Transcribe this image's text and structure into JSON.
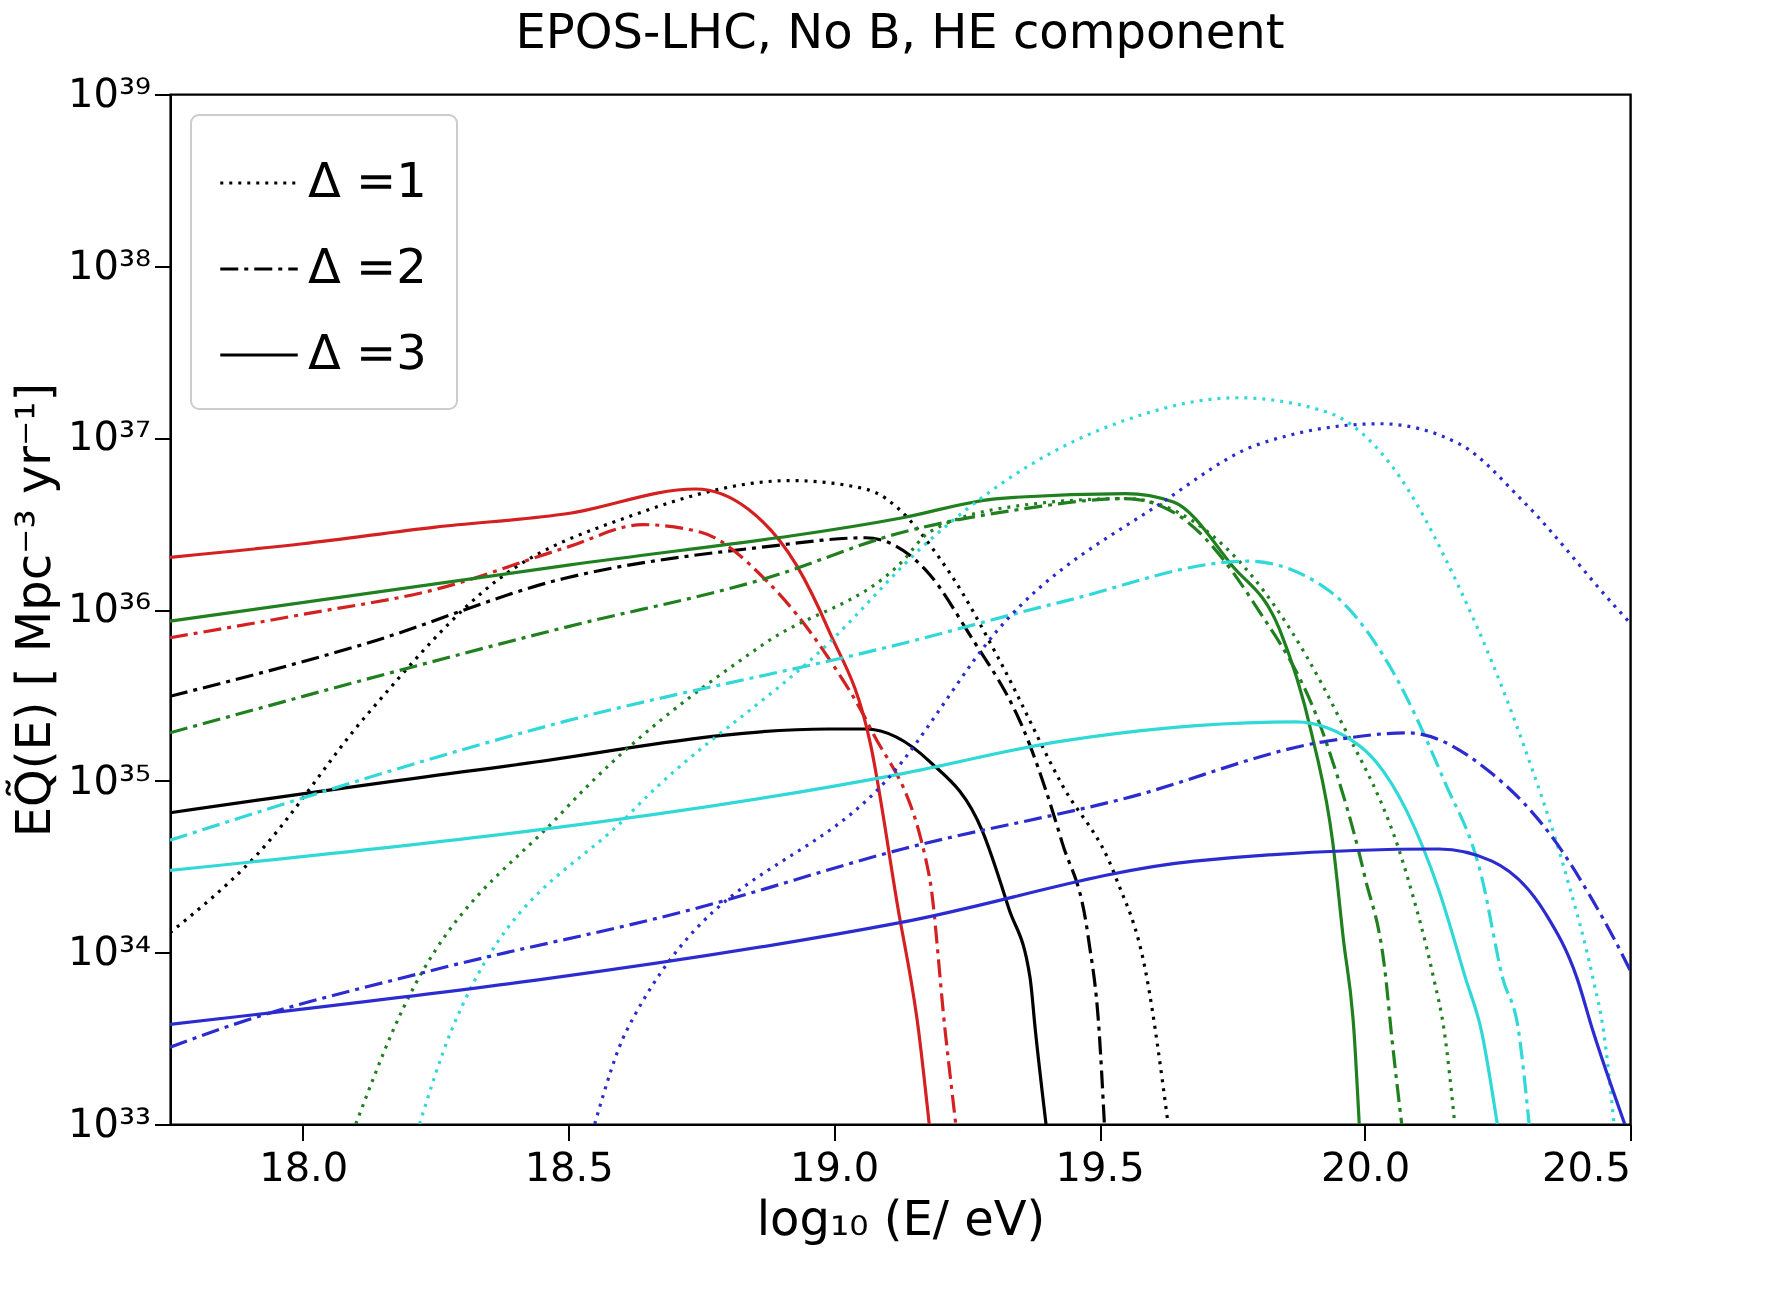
{
  "chart_data": {
    "type": "line",
    "title": "EPOS-LHC, No B, HE component",
    "xlabel": "log₁₀ (E/ eV)",
    "ylabel": "EQ̃(E) [ Mpc⁻³ yr⁻¹]",
    "log": "y",
    "legend": "top left",
    "xlim": [
      17.75,
      20.5
    ],
    "xticks": [
      {
        "value": 18,
        "label": "18.0"
      },
      18.5,
      {
        "value": 19,
        "label": "19.0"
      },
      19.5,
      {
        "value": 20,
        "label": "20.0"
      },
      20.5
    ],
    "ylim": [
      1e+33,
      1e+39
    ],
    "yticks": [
      {
        "value": 1e+33,
        "label": "10³³"
      },
      {
        "value": 1e+34,
        "label": "10³⁴"
      },
      {
        "value": 1e+35,
        "label": "10³⁵"
      },
      {
        "value": 1e+36,
        "label": "10³⁶"
      },
      {
        "value": 1e+37,
        "label": "10³⁷"
      },
      {
        "value": 1e+38,
        "label": "10³⁸"
      },
      {
        "value": 1e+39,
        "label": "10³⁹"
      }
    ],
    "series": [
      {
        "name": "Δ =1",
        "color": "#000000",
        "line_style": "dotted",
        "x": [
          17.75,
          17.91,
          18.12,
          18.37,
          18.62,
          18.92,
          19.06,
          19.22,
          19.31,
          19.43,
          19.53,
          19.59,
          19.63
        ],
        "values": [
          1.3e+34,
          3.6e+34,
          2.4e+35,
          1.5e+36,
          3.5e+36,
          5.6e+36,
          5e+36,
          1.6e+36,
          5.2e+35,
          9.5e+34,
          2.8e+34,
          7.1e+33,
          1e+33
        ]
      },
      {
        "name": "Δ =2",
        "color": "#000000",
        "line_style": "dashdot",
        "x": [
          17.75,
          18.12,
          18.49,
          18.87,
          19.06,
          19.18,
          19.25,
          19.37,
          19.43,
          19.48,
          19.5,
          19.51
        ],
        "values": [
          3.1e+35,
          6.3e+35,
          1.5e+36,
          2.3e+36,
          2.6e+36,
          1.6e+36,
          7.6e+35,
          1.6e+35,
          4.4e+34,
          1.2e+34,
          3.5e+33,
          1e+33
        ]
      },
      {
        "name": "Δ =3",
        "color": "#000000",
        "line_style": "solid",
        "x": [
          17.75,
          18.37,
          18.99,
          19.06,
          19.18,
          19.28,
          19.33,
          19.37,
          19.38,
          19.4
        ],
        "values": [
          6.5e+34,
          1.2e+35,
          2e+35,
          2e+35,
          1.3e+35,
          5.1e+34,
          1.8e+34,
          7.1e+33,
          3.5e+33,
          1e+33
        ]
      },
      {
        "color": "#d42020",
        "line_style": "dashdot",
        "x": [
          17.75,
          18.0,
          18.25,
          18.5,
          18.64,
          18.75,
          18.87,
          18.99,
          19.07,
          19.18,
          19.21,
          19.23
        ],
        "values": [
          6.8e+35,
          9.3e+35,
          1.3e+36,
          2.3e+36,
          3.1e+36,
          2.8e+36,
          1.5e+36,
          5.2e+35,
          2e+35,
          2.8e+34,
          3.5e+33,
          1e+33
        ]
      },
      {
        "color": "#d42020",
        "line_style": "solid",
        "x": [
          17.75,
          18.0,
          18.25,
          18.5,
          18.74,
          18.84,
          18.93,
          18.99,
          19.07,
          19.12,
          19.16,
          19.18
        ],
        "values": [
          2e+36,
          2.4e+36,
          3e+36,
          3.6e+36,
          5e+36,
          3.8e+36,
          1.8e+36,
          7.6e+35,
          1.6e+35,
          1.9e+34,
          3.5e+33,
          1e+33
        ]
      },
      {
        "color": "#208020",
        "line_style": "dotted",
        "x": [
          18.1,
          18.17,
          18.49,
          18.87,
          19.13,
          19.18,
          19.35,
          19.55,
          19.68,
          19.83,
          19.95,
          20.08,
          20.13,
          20.15,
          20.17
        ],
        "values": [
          1e+33,
          3.5e+33,
          6.6e+34,
          6.3e+35,
          1.9e+36,
          2.8e+36,
          4e+36,
          4.4e+36,
          3.2e+36,
          1.05e+36,
          2.4e+35,
          2.8e+34,
          7.1e+33,
          3.5e+33,
          1e+33
        ]
      },
      {
        "color": "#208020",
        "line_style": "dashdot",
        "x": [
          17.75,
          18.5,
          18.87,
          19.13,
          19.35,
          19.55,
          19.65,
          19.79,
          19.93,
          20.0,
          20.04,
          20.05,
          20.07
        ],
        "values": [
          1.9e+35,
          7.9e+35,
          1.5e+36,
          2.8e+36,
          3.8e+36,
          4.4e+36,
          3.5e+36,
          1.1e+36,
          1.6e+35,
          2.8e+34,
          7.1e+33,
          3.5e+33,
          1e+33
        ]
      },
      {
        "color": "#208020",
        "line_style": "solid",
        "x": [
          17.75,
          18.5,
          19.13,
          19.31,
          19.55,
          19.64,
          19.75,
          19.84,
          19.9,
          19.94,
          19.96,
          19.98,
          19.99
        ],
        "values": [
          8.5e+35,
          1.8e+36,
          3.4e+36,
          4.4e+36,
          4.7e+36,
          4.2e+36,
          1.8e+36,
          7.6e+35,
          1.9e+35,
          4.4e+34,
          1.2e+34,
          3.5e+33,
          1e+33
        ]
      },
      {
        "color": "#30d8d8",
        "line_style": "dotted",
        "x": [
          18.22,
          18.28,
          18.62,
          18.99,
          19.18,
          19.37,
          19.55,
          19.76,
          19.93,
          20.05,
          20.18,
          20.3,
          20.38,
          20.43,
          20.45,
          20.47
        ],
        "values": [
          1e+33,
          3.5e+33,
          6.6e+34,
          6.3e+35,
          2.5e+36,
          6.9e+36,
          1.26e+37,
          1.7e+37,
          1.4e+37,
          6.9e+36,
          1.3e+36,
          1.6e+35,
          2.8e+34,
          7.1e+33,
          3.5e+33,
          1e+33
        ]
      },
      {
        "color": "#30d8d8",
        "line_style": "dashdot",
        "x": [
          17.75,
          18.49,
          19.13,
          19.43,
          19.78,
          19.93,
          20.05,
          20.15,
          20.22,
          20.26,
          20.29,
          20.31
        ],
        "values": [
          4.5e+34,
          2.2e+35,
          6.3e+35,
          1.1e+36,
          1.9e+36,
          1.3e+36,
          4.5e+35,
          1e+35,
          2.8e+34,
          7.1e+33,
          3.5e+33,
          1e+33
        ]
      },
      {
        "color": "#30d8d8",
        "line_style": "solid",
        "x": [
          17.75,
          19.13,
          19.43,
          19.87,
          19.99,
          20.08,
          20.14,
          20.19,
          20.22,
          20.25
        ],
        "values": [
          3e+34,
          1.1e+35,
          1.7e+35,
          2.2e+35,
          1.6e+35,
          6.6e+34,
          2.3e+34,
          7.1e+33,
          3.5e+33,
          1e+33
        ]
      },
      {
        "color": "#2b2bd0",
        "line_style": "dotted",
        "x": [
          18.55,
          18.61,
          19.13,
          19.31,
          19.62,
          19.8,
          20.03,
          20.18,
          20.3,
          20.47,
          20.5
        ],
        "values": [
          1e+33,
          3.5e+33,
          1.3e+35,
          7.6e+35,
          4.2e+36,
          9.1e+36,
          1.2e+37,
          9.1e+36,
          4.2e+36,
          1.05e+36,
          8.3e+35
        ]
      },
      {
        "color": "#2b2bd0",
        "line_style": "dashdot",
        "x": [
          17.75,
          17.87,
          18.24,
          18.74,
          19.13,
          19.55,
          19.93,
          20.08,
          20.24,
          20.36,
          20.43,
          20.47,
          20.5
        ],
        "values": [
          2.8e+33,
          3.8e+33,
          7.8e+33,
          1.8e+34,
          4e+34,
          7.9e+34,
          1.7e+35,
          1.9e+35,
          1.1e+35,
          4.4e+34,
          2e+34,
          1.2e+34,
          7.9e+33
        ]
      },
      {
        "color": "#2b2bd0",
        "line_style": "solid",
        "x": [
          17.75,
          19.13,
          19.68,
          20.14,
          20.24,
          20.34,
          20.4,
          20.43,
          20.49
        ],
        "values": [
          3.8e+33,
          1.5e+34,
          3.4e+34,
          4e+34,
          3.4e+34,
          1.7e+34,
          7.1e+33,
          3.5e+33,
          1e+33
        ]
      }
    ]
  }
}
